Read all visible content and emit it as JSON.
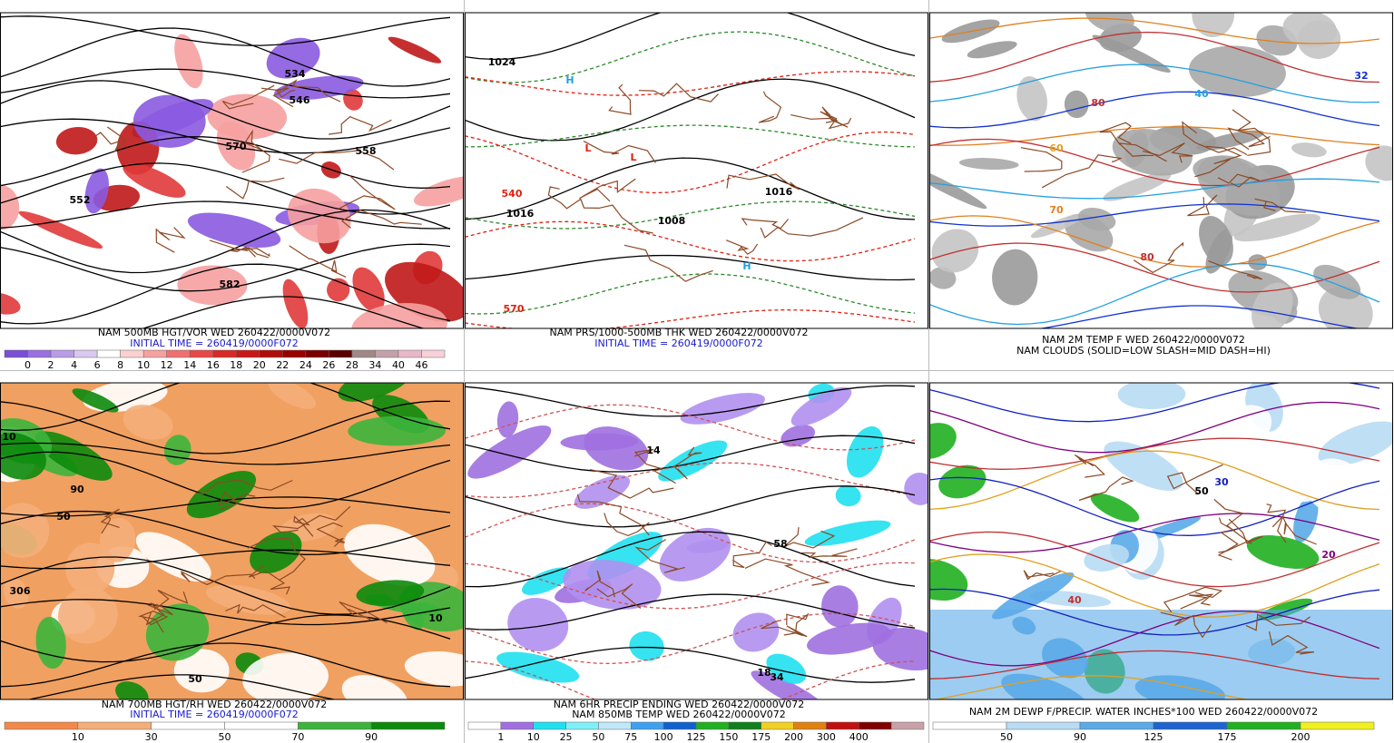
{
  "panels": [
    {
      "captions": [
        "NAM 500MB HGT/VOR WED 260422/0000V072",
        "INITIAL TIME = 260419/0000F072"
      ],
      "caption_colors": [
        "#000",
        "#1a1acc"
      ],
      "legend": {
        "labels": [
          "0",
          "2",
          "4",
          "6",
          "8",
          "10",
          "12",
          "14",
          "16",
          "18",
          "20",
          "22",
          "24",
          "26",
          "28",
          "34",
          "40",
          "46"
        ],
        "colors": [
          "#7a4fd6",
          "#9a6fe0",
          "#b99ce8",
          "#d9c8f0",
          "#fff",
          "#fbd0d0",
          "#f6a0a0",
          "#f07070",
          "#e84848",
          "#d82828",
          "#c81818",
          "#b00c0c",
          "#980000",
          "#7a0000",
          "#5a0000",
          "#a08888",
          "#c4a0a8",
          "#e8b8c8",
          "#f8d0d8"
        ]
      },
      "map_labels": [
        {
          "text": "534",
          "color": "#000"
        },
        {
          "text": "546",
          "color": "#000"
        },
        {
          "text": "558",
          "color": "#000"
        },
        {
          "text": "570",
          "color": "#000"
        },
        {
          "text": "552",
          "color": "#000"
        },
        {
          "text": "582",
          "color": "#000"
        }
      ]
    },
    {
      "captions": [
        "NAM PRS/1000-500MB THK WED 260422/0000V072",
        "INITIAL TIME = 260419/0000F072"
      ],
      "caption_colors": [
        "#000",
        "#1a1acc"
      ],
      "map_labels": [
        {
          "text": "1024",
          "color": "#000"
        },
        {
          "text": "1016",
          "color": "#000"
        },
        {
          "text": "1008",
          "color": "#000"
        },
        {
          "text": "1016",
          "color": "#000"
        },
        {
          "text": "H",
          "color": "#22a0e0"
        },
        {
          "text": "H",
          "color": "#22a0e0"
        },
        {
          "text": "L",
          "color": "#e02010"
        },
        {
          "text": "L",
          "color": "#e02010"
        },
        {
          "text": "570",
          "color": "#e02010"
        },
        {
          "text": "540",
          "color": "#e02010"
        }
      ]
    },
    {
      "captions": [
        "NAM 2M TEMP F WED 260422/0000V072",
        "NAM CLOUDS (SOLID=LOW SLASH=MID DASH=HI)"
      ],
      "caption_colors": [
        "#000",
        "#000"
      ],
      "map_labels": [
        {
          "text": "80",
          "color": "#c03030"
        },
        {
          "text": "70",
          "color": "#e08020"
        },
        {
          "text": "80",
          "color": "#c03030"
        },
        {
          "text": "40",
          "color": "#22a0e0"
        },
        {
          "text": "32",
          "color": "#1030d0"
        },
        {
          "text": "60",
          "color": "#e0a020"
        }
      ]
    },
    {
      "captions": [
        "NAM 700MB HGT/RH WED 260422/0000V072",
        "INITIAL TIME = 260419/0000F072"
      ],
      "caption_colors": [
        "#000",
        "#1a1acc"
      ],
      "legend": {
        "labels": [
          "10",
          "30",
          "50",
          "70",
          "90"
        ],
        "colors": [
          "#f0894a",
          "#f5ae7a",
          "#fff",
          "#fff",
          "#3cb43c",
          "#0c8a0c"
        ]
      },
      "map_labels": [
        {
          "text": "50",
          "color": "#000"
        },
        {
          "text": "90",
          "color": "#000"
        },
        {
          "text": "10",
          "color": "#000"
        },
        {
          "text": "50",
          "color": "#000"
        },
        {
          "text": "306",
          "color": "#000"
        },
        {
          "text": "10",
          "color": "#000"
        }
      ]
    },
    {
      "captions": [
        "NAM 6HR PRECIP ENDING WED 260422/0000V072",
        "NAM 850MB TEMP WED 260422/0000V072"
      ],
      "caption_colors": [
        "#000",
        "#000"
      ],
      "legend": {
        "labels": [
          "1",
          "10",
          "25",
          "50",
          "75",
          "100",
          "125",
          "150",
          "175",
          "200",
          "300",
          "400"
        ],
        "colors": [
          "#fff",
          "#a070e0",
          "#20e0f0",
          "#80f0f8",
          "#c0e8f8",
          "#40a0f0",
          "#1060d0",
          "#20b020",
          "#10801c",
          "#f0d020",
          "#e08010",
          "#c01010",
          "#800000",
          "#c8a0a8"
        ]
      },
      "map_labels": [
        {
          "text": "14",
          "color": "#000"
        },
        {
          "text": "18",
          "color": "#000"
        },
        {
          "text": "58",
          "color": "#000"
        },
        {
          "text": "34",
          "color": "#000"
        }
      ]
    },
    {
      "captions": [
        "NAM 2M DEWP F/PRECIP. WATER INCHES*100 WED 260422/0000V072"
      ],
      "caption_colors": [
        "#000"
      ],
      "legend": {
        "labels": [
          "50",
          "90",
          "125",
          "175",
          "200"
        ],
        "colors": [
          "#fff",
          "#b8dcf4",
          "#5aaae8",
          "#1e64d0",
          "#20b020",
          "#f0f020"
        ]
      },
      "map_labels": [
        {
          "text": "30",
          "color": "#1020c0"
        },
        {
          "text": "50",
          "color": "#000"
        },
        {
          "text": "20",
          "color": "#800080"
        },
        {
          "text": "40",
          "color": "#c03030"
        }
      ]
    }
  ]
}
